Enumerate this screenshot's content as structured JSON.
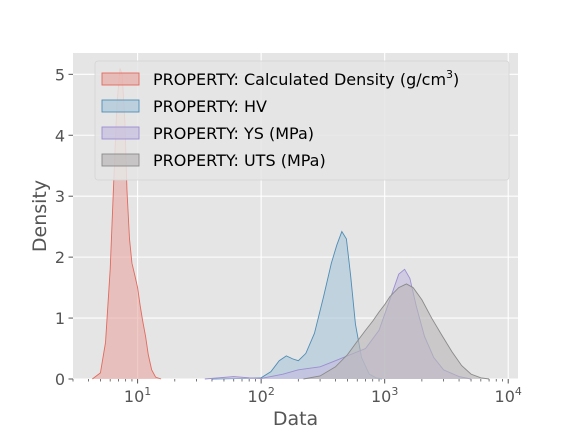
{
  "chart_data": {
    "type": "area",
    "title": "",
    "xlabel": "Data",
    "ylabel": "Density",
    "xscale": "log",
    "xlim": [
      3,
      12000
    ],
    "ylim": [
      0,
      5.35
    ],
    "grid": true,
    "legend_position": "top-right",
    "x_ticks": [
      {
        "value": 10,
        "base": "10",
        "exp": "1"
      },
      {
        "value": 100,
        "base": "10",
        "exp": "2"
      },
      {
        "value": 1000,
        "base": "10",
        "exp": "3"
      },
      {
        "value": 10000,
        "base": "10",
        "exp": "4"
      }
    ],
    "y_ticks": [
      0,
      1,
      2,
      3,
      4,
      5
    ],
    "series": [
      {
        "name": "PROPERTY: Calculated Density (g/cm",
        "name_sup": "3",
        "name_suffix": ")",
        "fill": "#e8a9a4",
        "stroke": "#e06a5e",
        "x": [
          4.3,
          5,
          5.5,
          6,
          6.4,
          6.8,
          7.2,
          7.5,
          7.9,
          8.2,
          8.6,
          9,
          9.5,
          10,
          10.5,
          11,
          11.6,
          12.2,
          13,
          14,
          15.5
        ],
        "y": [
          0,
          0.1,
          0.6,
          1.8,
          3.2,
          4.5,
          5.1,
          5.0,
          4.2,
          3.1,
          2.3,
          1.9,
          1.7,
          1.5,
          1.2,
          0.95,
          0.7,
          0.4,
          0.15,
          0.03,
          0
        ]
      },
      {
        "name": "PROPERTY: HV",
        "fill": "#a9c6d8",
        "stroke": "#4f8db5",
        "x": [
          40,
          70,
          100,
          120,
          140,
          160,
          180,
          200,
          230,
          270,
          320,
          370,
          410,
          450,
          490,
          530,
          580,
          650,
          750,
          850,
          950
        ],
        "y": [
          0,
          0.01,
          0.02,
          0.12,
          0.3,
          0.38,
          0.33,
          0.3,
          0.42,
          0.75,
          1.35,
          1.9,
          2.2,
          2.42,
          2.3,
          1.7,
          0.9,
          0.35,
          0.08,
          0.02,
          0
        ]
      },
      {
        "name": "PROPERTY: YS (MPa)",
        "fill": "#c5bce0",
        "stroke": "#9b8fd0",
        "x": [
          35,
          60,
          80,
          100,
          150,
          200,
          300,
          400,
          500,
          700,
          900,
          1100,
          1300,
          1450,
          1600,
          1800,
          2100,
          2500,
          3000,
          4000,
          5000
        ],
        "y": [
          0,
          0.04,
          0.02,
          0.01,
          0.08,
          0.15,
          0.2,
          0.3,
          0.38,
          0.5,
          0.8,
          1.3,
          1.72,
          1.8,
          1.65,
          1.2,
          0.7,
          0.35,
          0.15,
          0.04,
          0
        ]
      },
      {
        "name": "PROPERTY: UTS (MPa)",
        "fill": "#b9b6b6",
        "stroke": "#8a8a8a",
        "x": [
          220,
          300,
          400,
          500,
          600,
          700,
          800,
          900,
          1000,
          1100,
          1300,
          1500,
          1700,
          2000,
          2400,
          2900,
          3500,
          4200,
          5000,
          6000,
          7000
        ],
        "y": [
          0,
          0.05,
          0.2,
          0.4,
          0.62,
          0.8,
          0.95,
          1.1,
          1.22,
          1.35,
          1.5,
          1.56,
          1.5,
          1.3,
          1.0,
          0.72,
          0.45,
          0.22,
          0.08,
          0.02,
          0
        ]
      }
    ]
  }
}
